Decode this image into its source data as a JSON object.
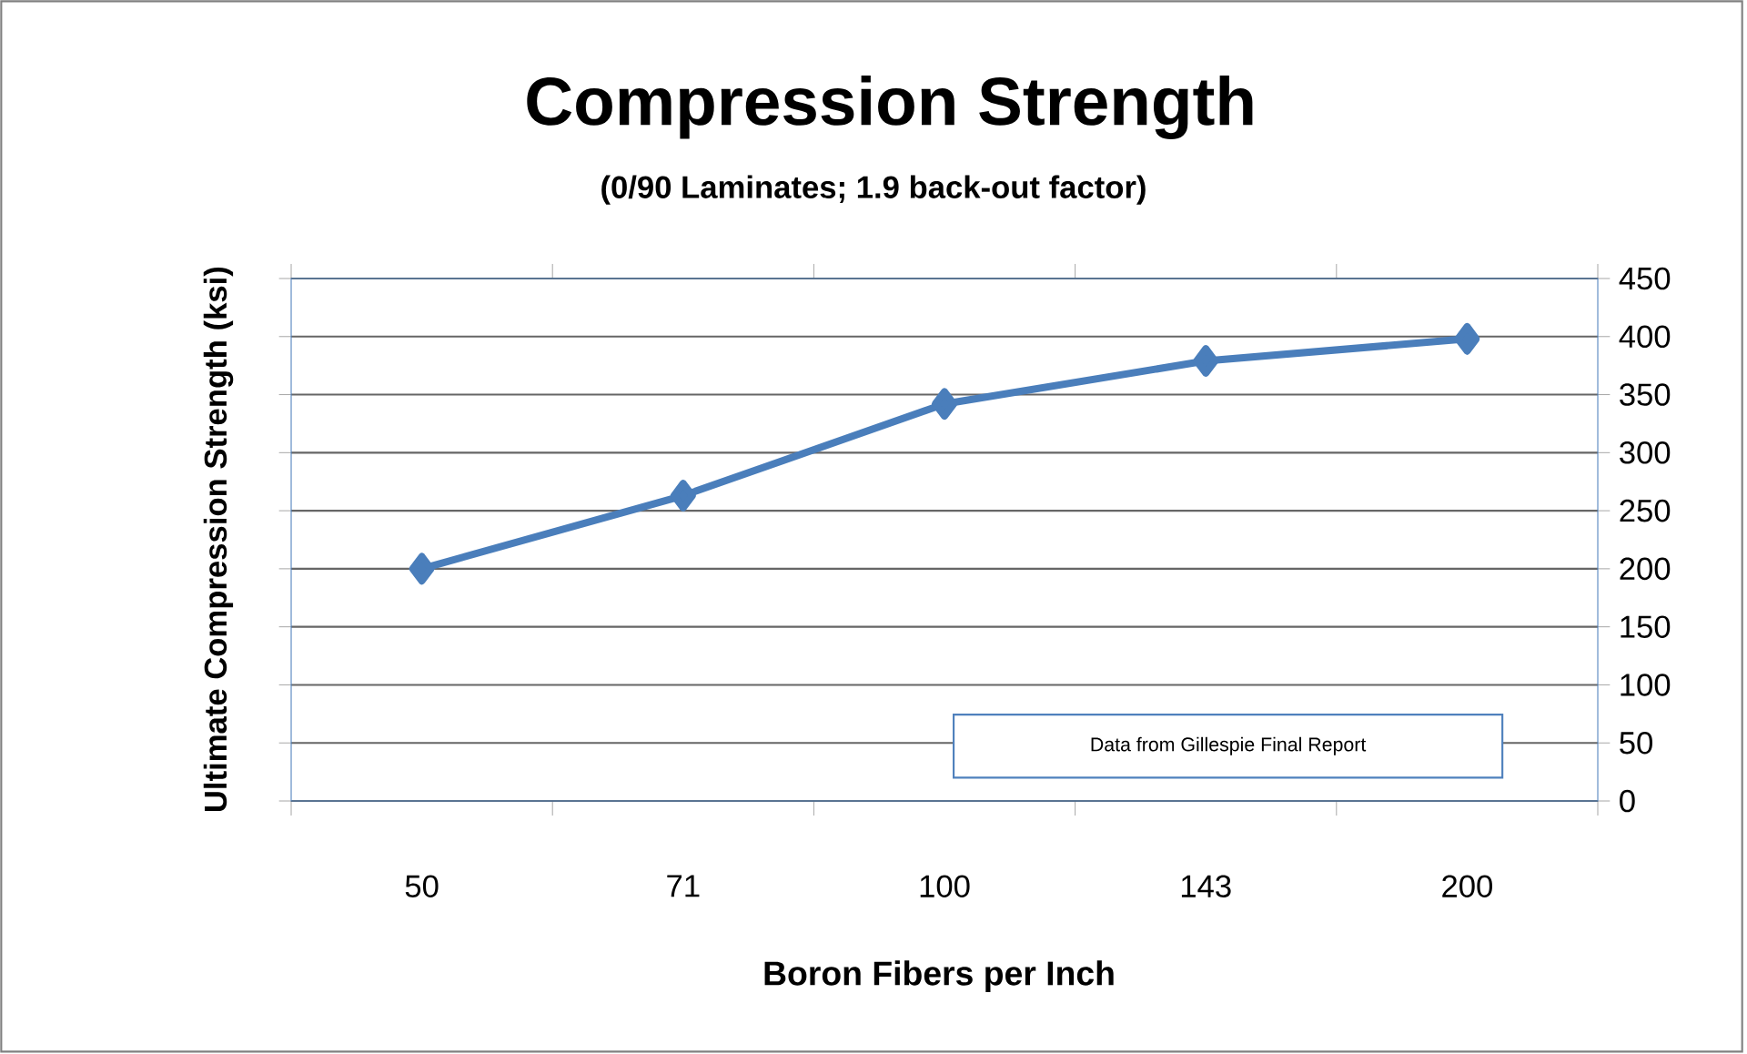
{
  "chart_data": {
    "type": "line",
    "title": "Compression Strength",
    "subtitle": "(0/90 Laminates; 1.9 back-out factor)",
    "xlabel": "Boron Fibers per Inch",
    "ylabel": "Ultimate Compression Strength (ksi)",
    "categories": [
      "50",
      "71",
      "100",
      "143",
      "200"
    ],
    "series": [
      {
        "color": "#4a7ebb",
        "values": [
          200,
          263,
          342,
          379,
          398
        ]
      }
    ],
    "ylim": [
      0,
      450
    ],
    "yticks": [
      0,
      50,
      100,
      150,
      200,
      250,
      300,
      350,
      400,
      450
    ],
    "grid": "y",
    "marker": "diamond",
    "annotations": [
      "Data from Gillespie Final Report"
    ]
  }
}
